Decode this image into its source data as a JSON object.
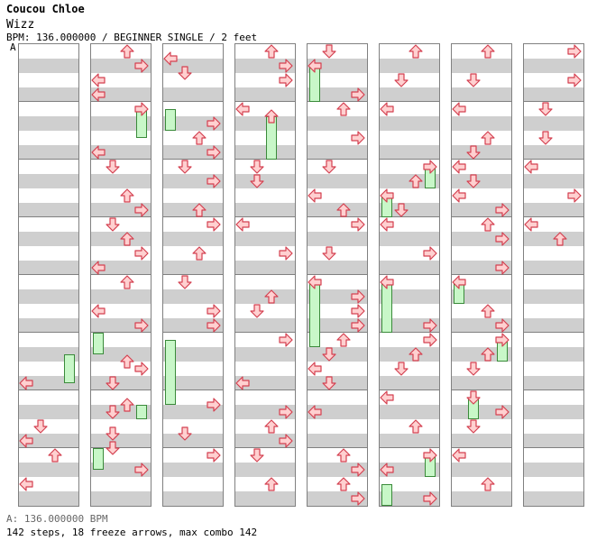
{
  "header": {
    "title": "Coucou Chloe",
    "subtitle": "Wizz",
    "meta": "BPM: 136.000000 / BEGINNER SINGLE / 2 feet",
    "marker": "A"
  },
  "footer": {
    "bpm": "A: 136.000000 BPM",
    "stats": "142 steps, 18 freeze arrows, max combo 142"
  },
  "colors": {
    "arrow_fill": "#ffd0d0",
    "arrow_stroke": "#d44050",
    "freeze_fill": "#c8f7c8",
    "freeze_stroke": "#3a8a3a",
    "stripe": "#cfcfcf"
  },
  "chart": {
    "lanes": [
      "left",
      "down",
      "up",
      "right"
    ],
    "rows_per_measure": 8,
    "measures_per_column": 8,
    "columns": [
      {
        "notes": [
          [
            "left",
            47
          ],
          [
            "down",
            53
          ],
          [
            "left",
            55
          ],
          [
            "up",
            57
          ],
          [
            "left",
            61
          ]
        ],
        "freezes": [
          [
            "right",
            43,
            46
          ]
        ]
      },
      {
        "notes": [
          [
            "up",
            1
          ],
          [
            "right",
            3
          ],
          [
            "left",
            5
          ],
          [
            "left",
            7
          ],
          [
            "right",
            9
          ],
          [
            "left",
            15
          ],
          [
            "down",
            17
          ],
          [
            "up",
            21
          ],
          [
            "right",
            23
          ],
          [
            "down",
            25
          ],
          [
            "up",
            27
          ],
          [
            "right",
            29
          ],
          [
            "left",
            31
          ],
          [
            "up",
            33
          ],
          [
            "left",
            37
          ],
          [
            "right",
            39
          ],
          [
            "up",
            44
          ],
          [
            "right",
            45
          ],
          [
            "down",
            47
          ],
          [
            "up",
            50
          ],
          [
            "down",
            51
          ],
          [
            "down",
            54
          ],
          [
            "down",
            56
          ],
          [
            "right",
            59
          ]
        ],
        "freezes": [
          [
            "right",
            9,
            12
          ],
          [
            "left",
            40,
            42
          ],
          [
            "right",
            50,
            51
          ],
          [
            "left",
            56,
            58
          ]
        ]
      },
      {
        "notes": [
          [
            "left",
            2
          ],
          [
            "down",
            4
          ],
          [
            "right",
            11
          ],
          [
            "up",
            13
          ],
          [
            "right",
            15
          ],
          [
            "down",
            17
          ],
          [
            "right",
            19
          ],
          [
            "up",
            23
          ],
          [
            "right",
            25
          ],
          [
            "up",
            29
          ],
          [
            "down",
            33
          ],
          [
            "right",
            37
          ],
          [
            "right",
            39
          ],
          [
            "right",
            50
          ],
          [
            "down",
            54
          ],
          [
            "right",
            57
          ]
        ],
        "freezes": [
          [
            "left",
            9,
            11
          ],
          [
            "left",
            41,
            49
          ]
        ]
      },
      {
        "notes": [
          [
            "up",
            1
          ],
          [
            "right",
            3
          ],
          [
            "right",
            5
          ],
          [
            "left",
            9
          ],
          [
            "up",
            10
          ],
          [
            "down",
            17
          ],
          [
            "down",
            19
          ],
          [
            "left",
            25
          ],
          [
            "right",
            29
          ],
          [
            "up",
            35
          ],
          [
            "down",
            37
          ],
          [
            "right",
            41
          ],
          [
            "left",
            47
          ],
          [
            "right",
            51
          ],
          [
            "up",
            53
          ],
          [
            "right",
            55
          ],
          [
            "down",
            57
          ],
          [
            "up",
            61
          ]
        ],
        "freezes": [
          [
            "up",
            10,
            15
          ]
        ]
      },
      {
        "notes": [
          [
            "down",
            1
          ],
          [
            "left",
            3
          ],
          [
            "right",
            7
          ],
          [
            "up",
            9
          ],
          [
            "right",
            13
          ],
          [
            "down",
            17
          ],
          [
            "left",
            21
          ],
          [
            "up",
            23
          ],
          [
            "right",
            25
          ],
          [
            "down",
            29
          ],
          [
            "left",
            33
          ],
          [
            "right",
            35
          ],
          [
            "right",
            37
          ],
          [
            "right",
            39
          ],
          [
            "up",
            41
          ],
          [
            "down",
            43
          ],
          [
            "left",
            45
          ],
          [
            "down",
            47
          ],
          [
            "left",
            51
          ],
          [
            "up",
            57
          ],
          [
            "right",
            59
          ],
          [
            "up",
            61
          ],
          [
            "right",
            63
          ]
        ],
        "freezes": [
          [
            "left",
            3,
            7
          ],
          [
            "left",
            33,
            41
          ]
        ]
      },
      {
        "notes": [
          [
            "up",
            1
          ],
          [
            "down",
            5
          ],
          [
            "left",
            9
          ],
          [
            "right",
            17
          ],
          [
            "up",
            19
          ],
          [
            "left",
            21
          ],
          [
            "down",
            23
          ],
          [
            "left",
            25
          ],
          [
            "right",
            29
          ],
          [
            "left",
            33
          ],
          [
            "right",
            39
          ],
          [
            "right",
            41
          ],
          [
            "up",
            43
          ],
          [
            "down",
            45
          ],
          [
            "left",
            49
          ],
          [
            "up",
            53
          ],
          [
            "right",
            57
          ],
          [
            "left",
            59
          ],
          [
            "right",
            63
          ]
        ],
        "freezes": [
          [
            "right",
            17,
            19
          ],
          [
            "left",
            21,
            23
          ],
          [
            "left",
            33,
            39
          ],
          [
            "right",
            57,
            59
          ],
          [
            "left",
            61,
            63
          ]
        ]
      },
      {
        "notes": [
          [
            "up",
            1
          ],
          [
            "down",
            5
          ],
          [
            "left",
            9
          ],
          [
            "up",
            13
          ],
          [
            "down",
            15
          ],
          [
            "left",
            17
          ],
          [
            "down",
            19
          ],
          [
            "left",
            21
          ],
          [
            "right",
            23
          ],
          [
            "up",
            25
          ],
          [
            "right",
            27
          ],
          [
            "right",
            31
          ],
          [
            "left",
            33
          ],
          [
            "up",
            37
          ],
          [
            "right",
            39
          ],
          [
            "right",
            41
          ],
          [
            "up",
            43
          ],
          [
            "down",
            45
          ],
          [
            "down",
            49
          ],
          [
            "right",
            51
          ],
          [
            "down",
            53
          ],
          [
            "left",
            57
          ],
          [
            "up",
            61
          ]
        ],
        "freezes": [
          [
            "left",
            33,
            35
          ],
          [
            "right",
            41,
            43
          ],
          [
            "down",
            49,
            51
          ]
        ]
      },
      {
        "notes": [
          [
            "right",
            1
          ],
          [
            "right",
            5
          ],
          [
            "down",
            9
          ],
          [
            "down",
            13
          ],
          [
            "left",
            17
          ],
          [
            "right",
            21
          ],
          [
            "left",
            25
          ],
          [
            "up",
            27
          ]
        ],
        "freezes": []
      }
    ]
  }
}
